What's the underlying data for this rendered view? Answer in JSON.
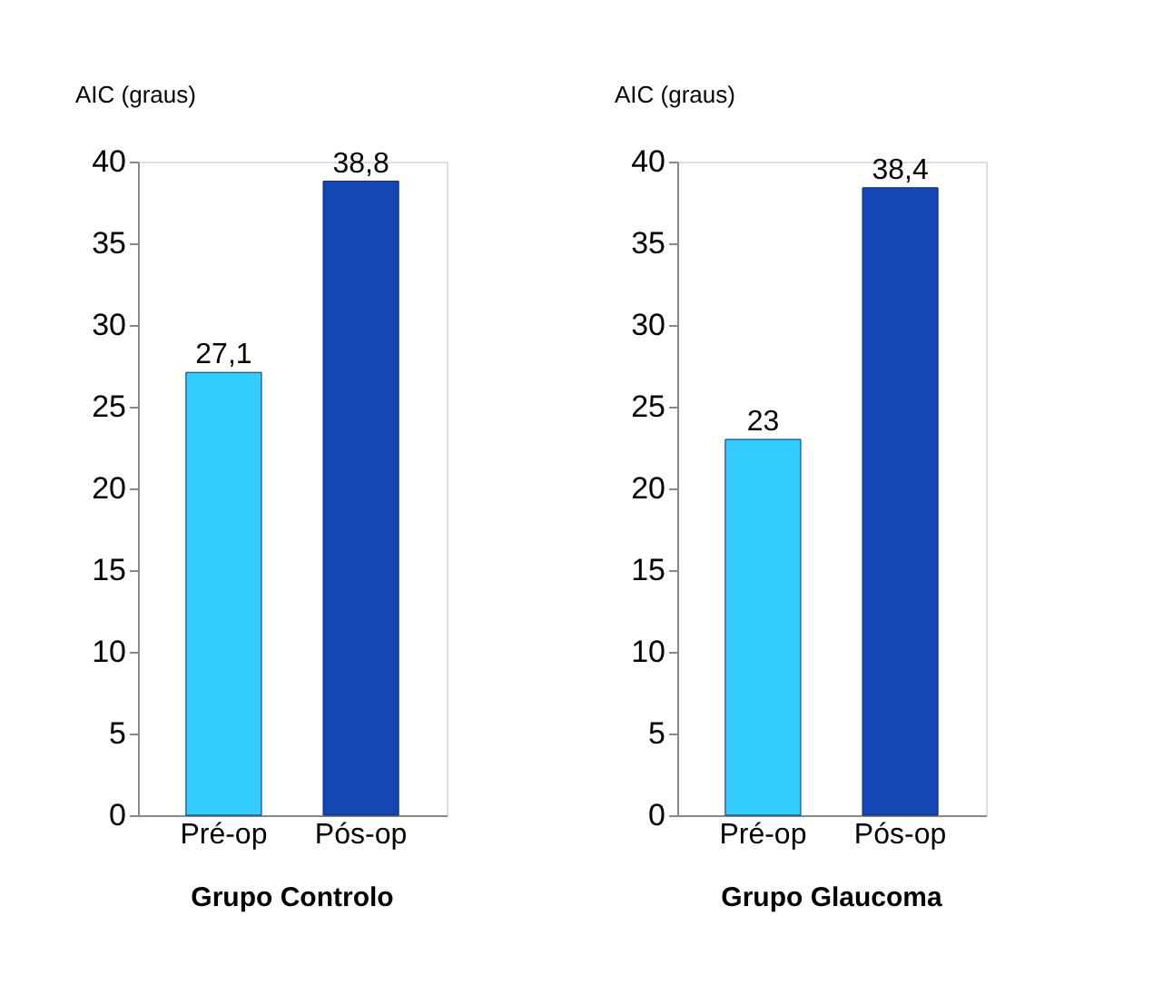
{
  "chart_data": [
    {
      "type": "bar",
      "title": "Grupo Controlo",
      "ylabel": "AIC (graus)",
      "categories": [
        "Pré-op",
        "Pós-op"
      ],
      "values": [
        27.1,
        38.8
      ],
      "value_labels": [
        "27,1",
        "38,8"
      ],
      "colors": [
        "#33ccff",
        "#1446b4"
      ],
      "ylim": [
        0,
        40
      ],
      "yticks": [
        0,
        5,
        10,
        15,
        20,
        25,
        30,
        35,
        40
      ],
      "grid": false
    },
    {
      "type": "bar",
      "title": "Grupo Glaucoma",
      "ylabel": "AIC (graus)",
      "categories": [
        "Pré-op",
        "Pós-op"
      ],
      "values": [
        23,
        38.4
      ],
      "value_labels": [
        "23",
        "38,4"
      ],
      "colors": [
        "#33ccff",
        "#1446b4"
      ],
      "ylim": [
        0,
        40
      ],
      "yticks": [
        0,
        5,
        10,
        15,
        20,
        25,
        30,
        35,
        40
      ],
      "grid": false
    }
  ]
}
